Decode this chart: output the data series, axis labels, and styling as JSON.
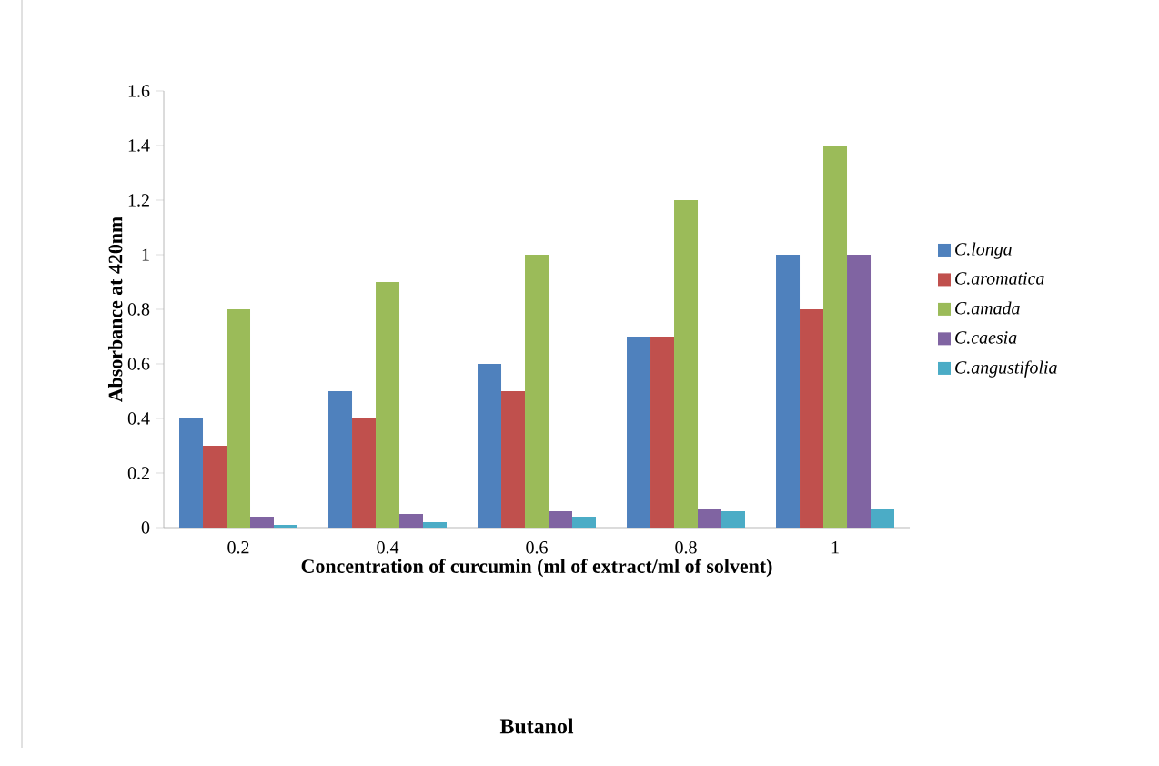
{
  "chart_data": {
    "type": "bar",
    "xlabel": "Concentration of curcumin (ml of extract/ml of solvent)",
    "ylabel": "Absorbance at 420nm",
    "categories": [
      "0.2",
      "0.4",
      "0.6",
      "0.8",
      "1"
    ],
    "series": [
      {
        "name": "C.longa",
        "color": "#4f81bd",
        "values": [
          0.4,
          0.5,
          0.6,
          0.7,
          1.0
        ]
      },
      {
        "name": "C.aromatica",
        "color": "#c0504d",
        "values": [
          0.3,
          0.4,
          0.5,
          0.7,
          0.8
        ]
      },
      {
        "name": "C.amada",
        "color": "#9bbb59",
        "values": [
          0.8,
          0.9,
          1.0,
          1.2,
          1.4
        ]
      },
      {
        "name": "C.caesia",
        "color": "#8064a2",
        "values": [
          0.04,
          0.05,
          0.06,
          0.07,
          1.0
        ]
      },
      {
        "name": "C.angustifolia",
        "color": "#4bacc6",
        "values": [
          0.01,
          0.02,
          0.04,
          0.06,
          0.07
        ]
      }
    ],
    "ylim": [
      0,
      1.6
    ],
    "yticks": [
      0,
      0.2,
      0.4,
      0.6,
      0.8,
      1,
      1.2,
      1.4,
      1.6
    ],
    "legend": "right",
    "annotations": [
      "Butanol"
    ]
  }
}
